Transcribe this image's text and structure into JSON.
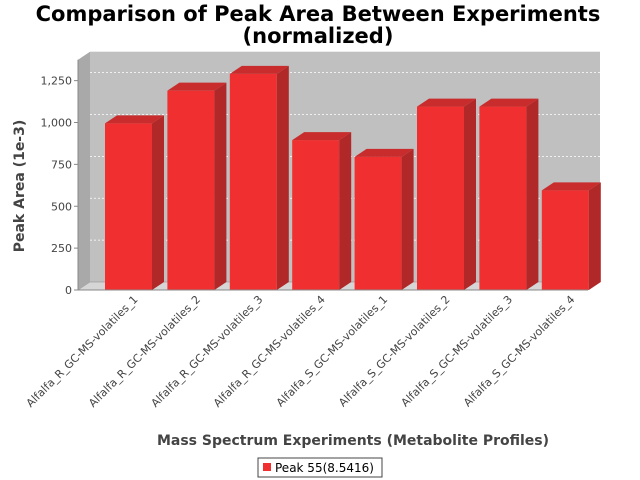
{
  "chart_data": {
    "type": "bar",
    "title_lines": [
      "Comparison of Peak Area Between Experiments",
      "(normalized)"
    ],
    "xlabel": "Mass Spectrum Experiments (Metabolite Profiles)",
    "ylabel": "Peak Area (1e-3)",
    "ylim": [
      0,
      1375
    ],
    "yticks": [
      0,
      250,
      500,
      750,
      1000,
      1250
    ],
    "ytick_labels": [
      "0",
      "250",
      "500",
      "750",
      "1,000",
      "1,250"
    ],
    "categories": [
      "Alfalfa_R_GC-MS-volatiles_1",
      "Alfalfa_R_GC-MS-volatiles_2",
      "Alfalfa_R_GC-MS-volatiles_3",
      "Alfalfa_R_GC-MS-volatiles_4",
      "Alfalfa_S_GC-MS-volatiles_1",
      "Alfalfa_S_GC-MS-volatiles_2",
      "Alfalfa_S_GC-MS-volatiles_3",
      "Alfalfa_S_GC-MS-volatiles_4"
    ],
    "series": [
      {
        "name": "Peak 55(8.5416)",
        "color": "#f03030",
        "values": [
          995,
          1190,
          1290,
          895,
          795,
          1095,
          1095,
          595
        ]
      }
    ],
    "grid": true,
    "legend_position": "bottom-center",
    "plot_background": "#c0c0c0"
  }
}
